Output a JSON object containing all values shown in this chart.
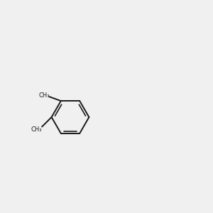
{
  "background_color": "#f0f0f0",
  "bond_color": "#1a1a1a",
  "oxygen_color": "#ff0000",
  "nitrogen_color": "#0000ff",
  "figsize": [
    3.0,
    3.0
  ],
  "dpi": 100
}
